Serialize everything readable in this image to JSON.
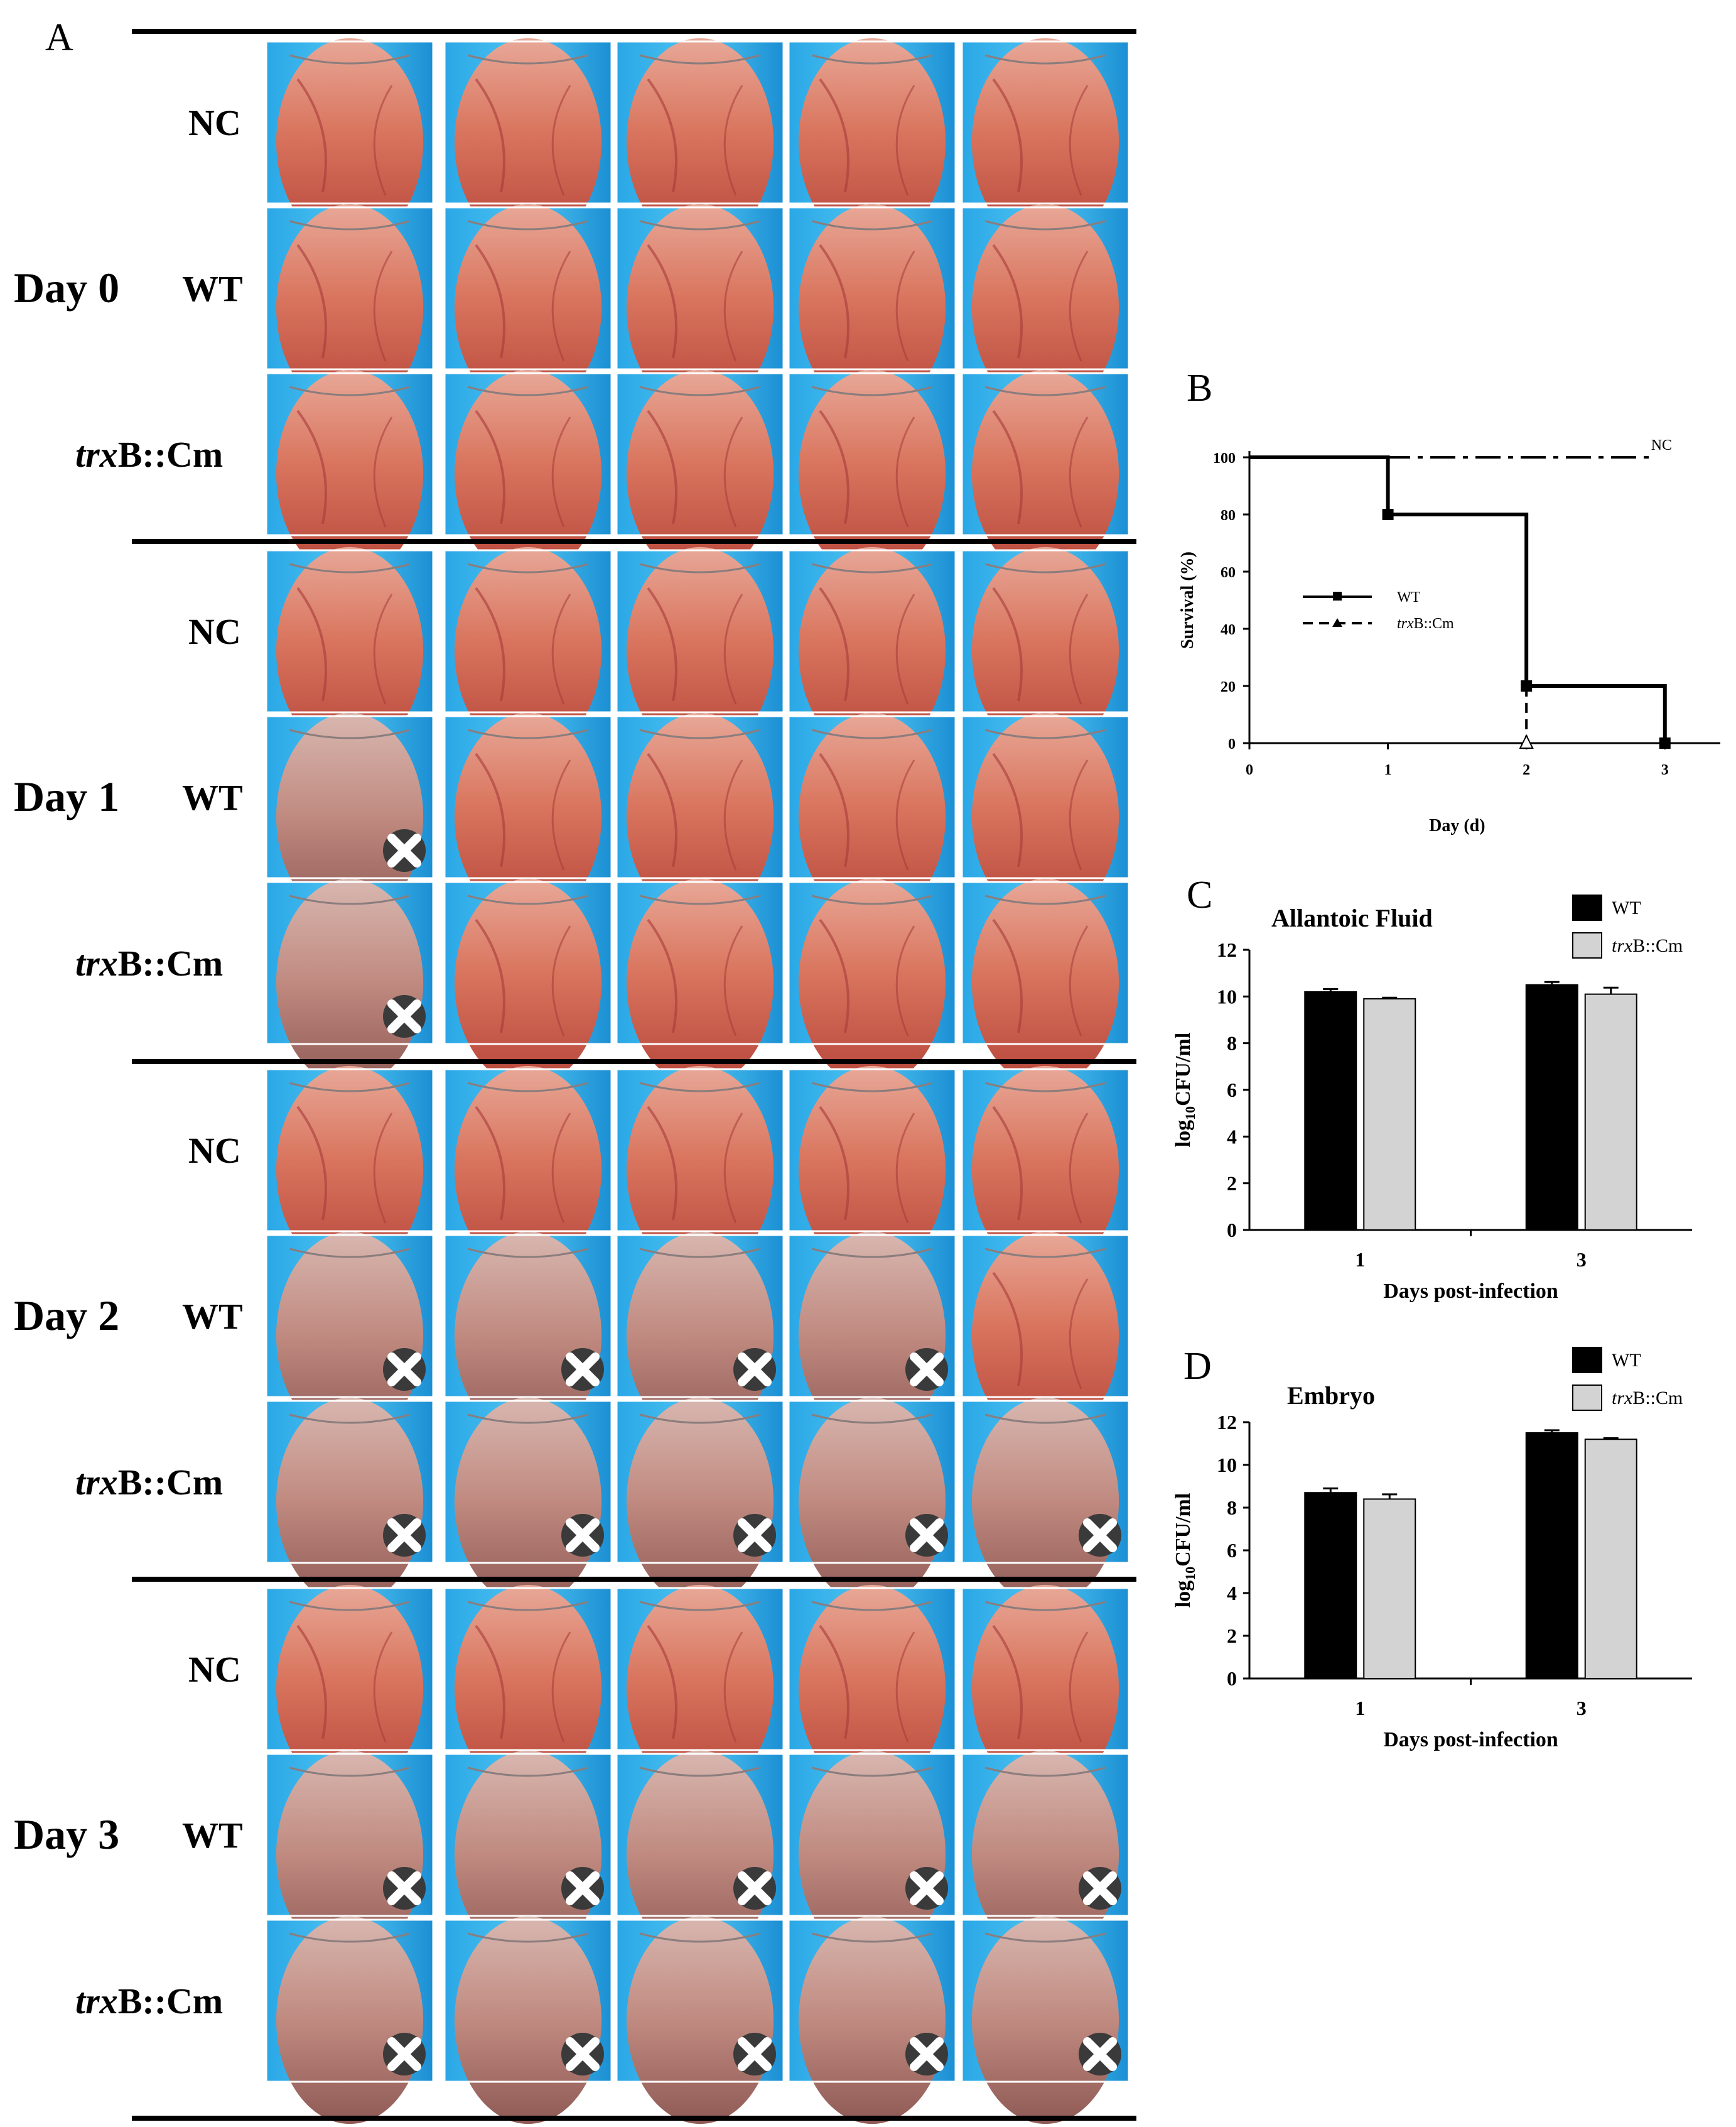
{
  "panel_a": {
    "label": "A",
    "days": [
      {
        "label": "Day 0",
        "rows": [
          {
            "group": "NC",
            "dead": [
              false,
              false,
              false,
              false,
              false
            ]
          },
          {
            "group": "WT",
            "dead": [
              false,
              false,
              false,
              false,
              false
            ]
          },
          {
            "group": "trxB::Cm",
            "dead": [
              false,
              false,
              false,
              false,
              false
            ]
          }
        ]
      },
      {
        "label": "Day 1",
        "rows": [
          {
            "group": "NC",
            "dead": [
              false,
              false,
              false,
              false,
              false
            ]
          },
          {
            "group": "WT",
            "dead": [
              true,
              false,
              false,
              false,
              false
            ]
          },
          {
            "group": "trxB::Cm",
            "dead": [
              true,
              false,
              false,
              false,
              false
            ]
          }
        ]
      },
      {
        "label": "Day 2",
        "rows": [
          {
            "group": "NC",
            "dead": [
              false,
              false,
              false,
              false,
              false
            ]
          },
          {
            "group": "WT",
            "dead": [
              true,
              true,
              true,
              true,
              false
            ]
          },
          {
            "group": "trxB::Cm",
            "dead": [
              true,
              true,
              true,
              true,
              true
            ]
          }
        ]
      },
      {
        "label": "Day 3",
        "rows": [
          {
            "group": "NC",
            "dead": [
              false,
              false,
              false,
              false,
              false
            ]
          },
          {
            "group": "WT",
            "dead": [
              true,
              true,
              true,
              true,
              true
            ]
          },
          {
            "group": "trxB::Cm",
            "dead": [
              true,
              true,
              true,
              true,
              true
            ]
          }
        ]
      }
    ]
  },
  "chart_data": [
    {
      "panel": "B",
      "type": "line",
      "title": "",
      "xlabel": "Day (d)",
      "ylabel": "Survival (%)",
      "xlim": [
        0,
        3.4
      ],
      "ylim": [
        0,
        100
      ],
      "xticks": [
        0,
        1,
        2,
        3
      ],
      "yticks": [
        0,
        20,
        40,
        60,
        80,
        100
      ],
      "series": [
        {
          "name": "NC",
          "style": "dashdot",
          "x": [
            0,
            2.9
          ],
          "y": [
            100,
            100
          ]
        },
        {
          "name": "WT",
          "style": "solid",
          "x": [
            0,
            1,
            2,
            3
          ],
          "y": [
            100,
            80,
            20,
            0
          ]
        },
        {
          "name": "trxB::Cm",
          "style": "dashed",
          "x": [
            0,
            1,
            2
          ],
          "y": [
            100,
            80,
            0
          ]
        }
      ],
      "legend": [
        "WT",
        "trxB::Cm"
      ],
      "annotation": "NC"
    },
    {
      "panel": "C",
      "type": "bar",
      "title": "Allantoic Fluid",
      "xlabel": "Days post-infection",
      "ylabel": "log10CFU/ml",
      "ylim": [
        0,
        12
      ],
      "yticks": [
        0,
        2,
        4,
        6,
        8,
        10,
        12
      ],
      "categories": [
        "1",
        "3"
      ],
      "series": [
        {
          "name": "WT",
          "color": "#000000",
          "values": [
            10.2,
            10.5
          ],
          "errors": [
            0.12,
            0.12
          ]
        },
        {
          "name": "trxB::Cm",
          "color": "#d3d3d3",
          "values": [
            9.9,
            10.1
          ],
          "errors": [
            0.05,
            0.28
          ]
        }
      ]
    },
    {
      "panel": "D",
      "type": "bar",
      "title": "Embryo",
      "xlabel": "Days post-infection",
      "ylabel": "log10CFU/ml",
      "ylim": [
        0,
        12
      ],
      "yticks": [
        0,
        2,
        4,
        6,
        8,
        10,
        12
      ],
      "categories": [
        "1",
        "3"
      ],
      "series": [
        {
          "name": "WT",
          "color": "#000000",
          "values": [
            8.7,
            11.5
          ],
          "errors": [
            0.2,
            0.12
          ]
        },
        {
          "name": "trxB::Cm",
          "color": "#d3d3d3",
          "values": [
            8.4,
            11.2
          ],
          "errors": [
            0.22,
            0.05
          ]
        }
      ]
    }
  ]
}
